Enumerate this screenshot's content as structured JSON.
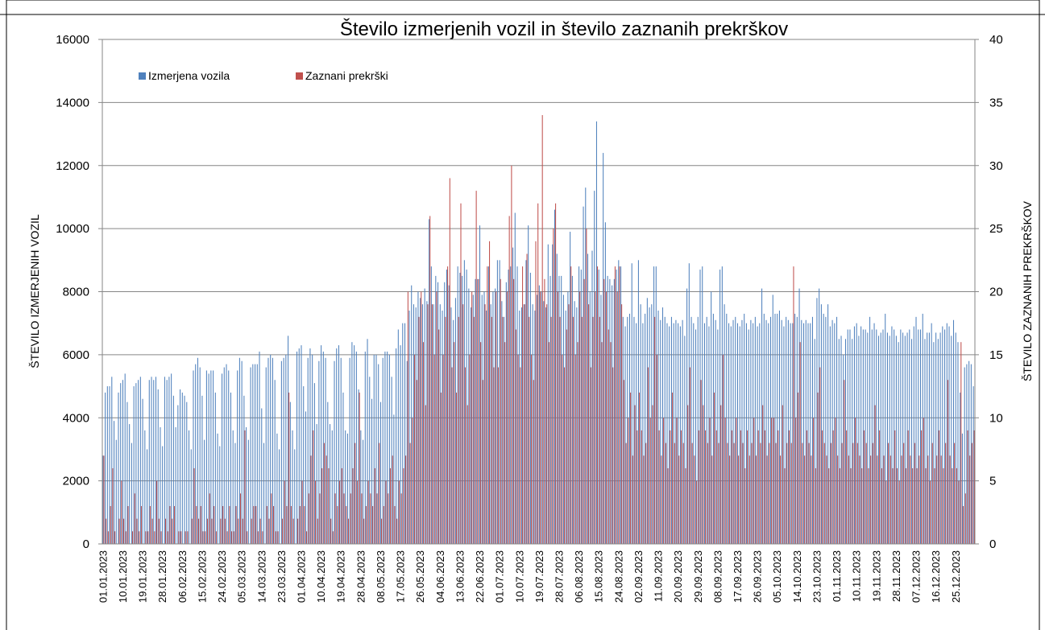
{
  "chart_data": {
    "type": "bar",
    "title": "Število izmerjenih vozil in število zaznanih prekrškov",
    "ylabel": "ŠTEVILO IZMERJENIH VOZIL",
    "y2label": "ŠTEVILO ZAZNANIH PREKRŠKOV",
    "ylim": [
      0,
      16000
    ],
    "yticks": [
      0,
      2000,
      4000,
      6000,
      8000,
      10000,
      12000,
      14000,
      16000
    ],
    "y2lim": [
      0,
      40
    ],
    "y2ticks": [
      0,
      5,
      10,
      15,
      20,
      25,
      30,
      35,
      40
    ],
    "grid": true,
    "legend": "upper left",
    "categories": [
      "01.01.2023",
      null,
      null,
      null,
      null,
      null,
      null,
      null,
      null,
      "10.01.2023",
      null,
      null,
      null,
      null,
      null,
      null,
      null,
      null,
      "19.01.2023",
      null,
      null,
      null,
      null,
      null,
      null,
      null,
      null,
      "28.01.2023",
      null,
      null,
      null,
      null,
      null,
      null,
      null,
      null,
      "06.02.2023",
      null,
      null,
      null,
      null,
      null,
      null,
      null,
      null,
      "15.02.2023",
      null,
      null,
      null,
      null,
      null,
      null,
      null,
      null,
      "24.02.2023",
      null,
      null,
      null,
      null,
      null,
      null,
      null,
      null,
      "05.03.2023",
      null,
      null,
      null,
      null,
      null,
      null,
      null,
      null,
      "14.03.2023",
      null,
      null,
      null,
      null,
      null,
      null,
      null,
      null,
      "23.03.2023",
      null,
      null,
      null,
      null,
      null,
      null,
      null,
      null,
      "01.04.2023",
      null,
      null,
      null,
      null,
      null,
      null,
      null,
      null,
      "10.04.2023",
      null,
      null,
      null,
      null,
      null,
      null,
      null,
      null,
      "19.04.2023",
      null,
      null,
      null,
      null,
      null,
      null,
      null,
      null,
      "28.04.2023",
      null,
      null,
      null,
      null,
      null,
      null,
      null,
      null,
      "08.05.2023",
      null,
      null,
      null,
      null,
      null,
      null,
      null,
      null,
      "17.05.2023",
      null,
      null,
      null,
      null,
      null,
      null,
      null,
      null,
      "26.05.2023",
      null,
      null,
      null,
      null,
      null,
      null,
      null,
      null,
      "04.06.2023",
      null,
      null,
      null,
      null,
      null,
      null,
      null,
      null,
      "13.06.2023",
      null,
      null,
      null,
      null,
      null,
      null,
      null,
      null,
      "22.06.2023",
      null,
      null,
      null,
      null,
      null,
      null,
      null,
      null,
      "01.07.2023",
      null,
      null,
      null,
      null,
      null,
      null,
      null,
      null,
      "10.07.2023",
      null,
      null,
      null,
      null,
      null,
      null,
      null,
      null,
      "19.07.2023",
      null,
      null,
      null,
      null,
      null,
      null,
      null,
      null,
      "28.07.2023",
      null,
      null,
      null,
      null,
      null,
      null,
      null,
      null,
      "06.08.2023",
      null,
      null,
      null,
      null,
      null,
      null,
      null,
      null,
      "15.08.2023",
      null,
      null,
      null,
      null,
      null,
      null,
      null,
      null,
      "24.08.2023",
      null,
      null,
      null,
      null,
      null,
      null,
      null,
      null,
      "02.09.2023",
      null,
      null,
      null,
      null,
      null,
      null,
      null,
      null,
      "11.09.2023",
      null,
      null,
      null,
      null,
      null,
      null,
      null,
      null,
      "20.09.2023",
      null,
      null,
      null,
      null,
      null,
      null,
      null,
      null,
      "29.09.2023",
      null,
      null,
      null,
      null,
      null,
      null,
      null,
      null,
      "08.09.2023",
      null,
      null,
      null,
      null,
      null,
      null,
      null,
      null,
      "17.09.2023",
      null,
      null,
      null,
      null,
      null,
      null,
      null,
      null,
      "26.09.2023",
      null,
      null,
      null,
      null,
      null,
      null,
      null,
      null,
      "05.10.2023",
      null,
      null,
      null,
      null,
      null,
      null,
      null,
      null,
      "14.10.2023",
      null,
      null,
      null,
      null,
      null,
      null,
      null,
      null,
      "23.10.2023",
      null,
      null,
      null,
      null,
      null,
      null,
      null,
      null,
      "01.11.2023",
      null,
      null,
      null,
      null,
      null,
      null,
      null,
      null,
      "10.11.2023",
      null,
      null,
      null,
      null,
      null,
      null,
      null,
      null,
      "19.11.2023",
      null,
      null,
      null,
      null,
      null,
      null,
      null,
      null,
      "28.11.2023",
      null,
      null,
      null,
      null,
      null,
      null,
      null,
      null,
      "07.12.2023",
      null,
      null,
      null,
      null,
      null,
      null,
      null,
      null,
      "16.12.2023",
      null,
      null,
      null,
      null,
      null,
      null,
      null,
      null,
      "25.12.2023",
      null,
      null,
      null,
      null,
      null,
      null,
      null,
      null
    ],
    "series": [
      {
        "name": "Izmerjena vozila",
        "color": "#4f81bd",
        "values": [
          2800,
          4800,
          5000,
          5000,
          5300,
          3900,
          3300,
          4800,
          5100,
          5200,
          5400,
          4500,
          3800,
          3200,
          5000,
          5100,
          5200,
          5300,
          4600,
          3600,
          3000,
          5200,
          5300,
          5200,
          5300,
          4900,
          3700,
          3100,
          5300,
          5200,
          5300,
          5400,
          4700,
          3700,
          4400,
          4900,
          4800,
          4700,
          4500,
          3600,
          3000,
          5500,
          5700,
          5900,
          5600,
          4700,
          3300,
          5500,
          5400,
          5500,
          5500,
          4800,
          3500,
          3100,
          5400,
          5600,
          5700,
          5500,
          4800,
          3600,
          3200,
          5500,
          5900,
          5800,
          4700,
          3700,
          3300,
          5600,
          5700,
          5700,
          5700,
          6100,
          4300,
          3200,
          5600,
          5900,
          6000,
          5900,
          5200,
          3500,
          3000,
          5800,
          5900,
          6000,
          6600,
          4500,
          3600,
          3000,
          6100,
          6200,
          6300,
          5000,
          4200,
          5900,
          6200,
          6000,
          5100,
          3800,
          5800,
          6300,
          6100,
          5900,
          4500,
          3800,
          3600,
          5800,
          6200,
          6300,
          5900,
          4800,
          3600,
          3500,
          5900,
          6400,
          6300,
          6100,
          4900,
          3600,
          3300,
          6100,
          6500,
          5300,
          4600,
          6000,
          6000,
          5700,
          4500,
          5900,
          6100,
          6100,
          6000,
          5300,
          4100,
          6200,
          6800,
          6300,
          7000,
          7000,
          5800,
          7400,
          8200,
          7600,
          7500,
          8000,
          7800,
          7600,
          8100,
          7700,
          10300,
          8800,
          7600,
          8500,
          8300,
          7600,
          7400,
          8300,
          8700,
          8200,
          7500,
          7100,
          7800,
          8800,
          8600,
          8500,
          9000,
          8700,
          8100,
          7500,
          7900,
          8400,
          8400,
          10100,
          7900,
          8000,
          7400,
          8800,
          7600,
          8000,
          8100,
          9000,
          9000,
          7700,
          7200,
          8300,
          8700,
          8800,
          9400,
          10500,
          8800,
          7400,
          7500,
          7600,
          9000,
          10100,
          8600,
          7600,
          7400,
          7900,
          8200,
          8000,
          7700,
          7500,
          9500,
          8500,
          9500,
          10600,
          9200,
          8500,
          8500,
          7900,
          7400,
          8000,
          9900,
          8500,
          7700,
          7500,
          8800,
          8700,
          10700,
          11300,
          9200,
          8000,
          9300,
          11200,
          13400,
          8700,
          7900,
          12400,
          10200,
          8500,
          8400,
          8200,
          8400,
          8700,
          9000,
          8800,
          7200,
          6900,
          7200,
          7300,
          8900,
          7200,
          7000,
          9000,
          7600,
          7000,
          7300,
          7800,
          7500,
          7600,
          8800,
          8800,
          7400,
          7100,
          7500,
          7200,
          7000,
          6900,
          7200,
          7000,
          7100,
          7000,
          6900,
          7100,
          6600,
          8100,
          8900,
          7200,
          7000,
          6800,
          7200,
          8700,
          8800,
          7000,
          7200,
          6900,
          8000,
          7300,
          7100,
          6800,
          8700,
          8800,
          7600,
          7300,
          7000,
          6900,
          7100,
          7200,
          7000,
          6900,
          7100,
          7300,
          7000,
          6800,
          7100,
          7000,
          7200,
          6900,
          7000,
          8100,
          7300,
          7100,
          7000,
          7200,
          7900,
          7300,
          7300,
          7400,
          7100,
          6900,
          7200,
          7100,
          7000,
          7000,
          7300,
          7200,
          8100,
          7100,
          7000,
          7100,
          7000,
          7000,
          7200,
          6500,
          7800,
          8100,
          7600,
          7300,
          7200,
          7600,
          6900,
          7100,
          7000,
          7200,
          6500,
          6600,
          6000,
          6500,
          6800,
          6800,
          6500,
          6900,
          7000,
          6600,
          6900,
          6800,
          6800,
          6700,
          7200,
          6800,
          7000,
          6800,
          6600,
          6700,
          6800,
          7300,
          6700,
          6600,
          6900,
          6800,
          6600,
          6400,
          6800,
          6700,
          6600,
          6700,
          6800,
          6500,
          6900,
          7200,
          6800,
          6800,
          7300,
          6500,
          6700,
          6700,
          7000,
          6400,
          6700,
          6500,
          6700,
          6900,
          6800,
          7000,
          6900,
          6600,
          7100,
          6700,
          6400,
          4800,
          3500,
          5600,
          5700,
          5800,
          5700,
          5000
        ]
      },
      {
        "name": "Zaznani prekrški",
        "color": "#c0504d",
        "axis": "y2",
        "values": [
          7,
          2,
          1,
          3,
          6,
          1,
          0,
          2,
          5,
          2,
          1,
          3,
          0,
          1,
          4,
          2,
          1,
          3,
          0,
          1,
          1,
          3,
          2,
          1,
          5,
          2,
          1,
          0,
          2,
          1,
          3,
          2,
          3,
          0,
          1,
          1,
          0,
          1,
          1,
          0,
          2,
          6,
          3,
          2,
          3,
          1,
          1,
          2,
          4,
          2,
          3,
          1,
          0,
          2,
          3,
          2,
          1,
          3,
          1,
          1,
          3,
          2,
          4,
          2,
          9,
          1,
          0,
          2,
          3,
          3,
          1,
          2,
          1,
          0,
          3,
          2,
          4,
          3,
          1,
          1,
          0,
          2,
          5,
          3,
          12,
          3,
          2,
          0,
          2,
          3,
          5,
          3,
          1,
          4,
          7,
          9,
          5,
          2,
          4,
          6,
          8,
          7,
          6,
          2,
          1,
          4,
          3,
          5,
          6,
          4,
          3,
          2,
          4,
          6,
          8,
          5,
          12,
          4,
          2,
          3,
          5,
          4,
          3,
          6,
          4,
          8,
          2,
          3,
          5,
          4,
          6,
          7,
          3,
          2,
          5,
          4,
          6,
          7,
          20,
          8,
          10,
          15,
          13,
          18,
          20,
          16,
          11,
          19,
          26,
          19,
          15,
          20,
          17,
          12,
          15,
          18,
          22,
          29,
          14,
          16,
          12,
          18,
          27,
          19,
          14,
          11,
          15,
          20,
          18,
          28,
          21,
          16,
          13,
          19,
          22,
          24,
          18,
          14,
          20,
          14,
          21,
          18,
          16,
          20,
          26,
          30,
          21,
          17,
          15,
          14,
          22,
          19,
          23,
          18,
          15,
          13,
          24,
          27,
          20,
          34,
          21,
          19,
          16,
          18,
          25,
          27,
          20,
          18,
          15,
          14,
          17,
          19,
          22,
          18,
          15,
          16,
          20,
          18,
          21,
          25,
          19,
          14,
          18,
          20,
          22,
          18,
          16,
          21,
          20,
          17,
          16,
          14,
          22,
          20,
          22,
          19,
          13,
          8,
          10,
          12,
          7,
          11,
          9,
          12,
          9,
          7,
          8,
          14,
          10,
          11,
          18,
          15,
          9,
          7,
          10,
          8,
          6,
          9,
          12,
          8,
          10,
          7,
          9,
          8,
          6,
          11,
          14,
          8,
          7,
          5,
          9,
          13,
          11,
          9,
          8,
          10,
          7,
          12,
          9,
          8,
          11,
          15,
          10,
          8,
          7,
          9,
          8,
          10,
          7,
          9,
          8,
          6,
          9,
          7,
          8,
          10,
          7,
          9,
          8,
          11,
          9,
          7,
          8,
          10,
          10,
          8,
          9,
          7,
          11,
          6,
          8,
          9,
          8,
          22,
          10,
          12,
          16,
          8,
          7,
          9,
          8,
          7,
          10,
          6,
          12,
          14,
          9,
          8,
          7,
          6,
          8,
          9,
          10,
          7,
          6,
          8,
          13,
          9,
          7,
          6,
          8,
          10,
          8,
          7,
          6,
          9,
          8,
          6,
          7,
          8,
          11,
          7,
          9,
          6,
          7,
          5,
          8,
          7,
          6,
          9,
          6,
          5,
          7,
          8,
          6,
          9,
          7,
          6,
          8,
          6,
          7,
          9,
          10,
          6,
          7,
          5,
          8,
          6,
          7,
          9,
          7,
          6,
          8,
          13,
          7,
          6,
          8,
          6,
          5,
          16,
          3,
          4,
          9,
          7,
          8,
          9
        ]
      }
    ]
  }
}
